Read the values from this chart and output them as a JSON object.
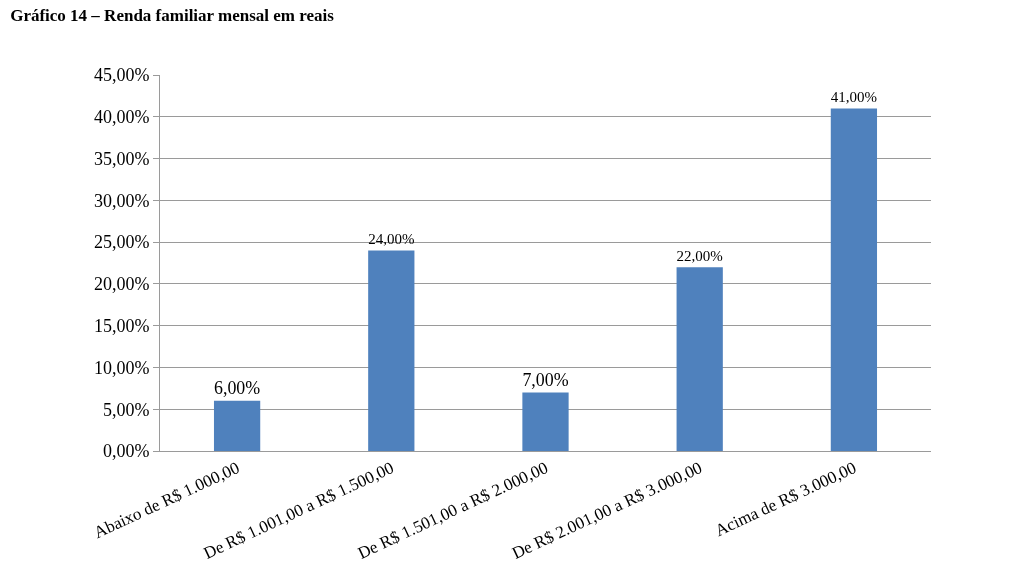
{
  "chart_data": {
    "type": "bar",
    "title": "Gráfico 14 – Renda familiar mensal em reais",
    "categories": [
      "Abaixo de R$ 1.000,00",
      "De R$ 1.001,00 a R$ 1.500,00",
      "De R$ 1.501,00 a R$ 2.000,00",
      "De R$ 2.001,00 a R$ 3.000,00",
      "Acima de R$ 3.000,00"
    ],
    "values": [
      6,
      24,
      7,
      22,
      41
    ],
    "value_labels": [
      "6,00%",
      "24,00%",
      "7,00%",
      "22,00%",
      "41,00%"
    ],
    "color": "#4f81bd",
    "ylim": [
      0,
      45
    ],
    "yticks": [
      {
        "value": 0,
        "label": "0,00%"
      },
      {
        "value": 5,
        "label": "5,00%"
      },
      {
        "value": 10,
        "label": "10,00%"
      },
      {
        "value": 15,
        "label": "15,00%"
      },
      {
        "value": 20,
        "label": "20,00%"
      },
      {
        "value": 25,
        "label": "25,00%"
      },
      {
        "value": 30,
        "label": "30,00%"
      },
      {
        "value": 35,
        "label": "35,00%"
      },
      {
        "value": 40,
        "label": "40,00%"
      },
      {
        "value": 45,
        "label": "45,00%"
      }
    ],
    "grid": "y",
    "legend": false
  }
}
